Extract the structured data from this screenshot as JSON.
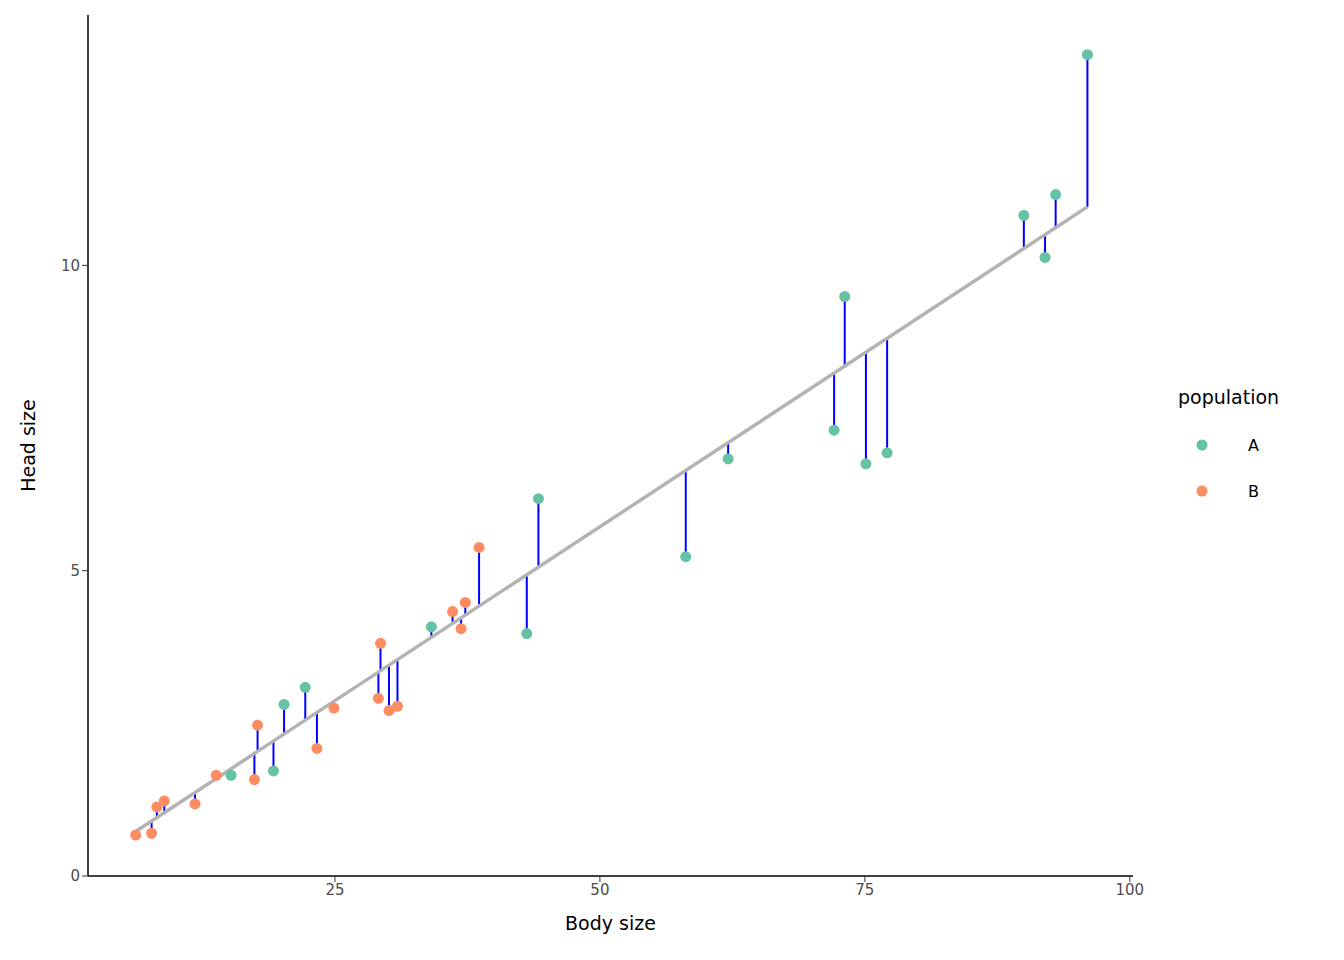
{
  "chart_data": {
    "type": "scatter",
    "x_label": "Body size",
    "y_label": "Head size",
    "xlim": [
      1.7,
      100.3
    ],
    "ylim": [
      0,
      14.1
    ],
    "xticks": [
      25,
      50,
      75,
      100
    ],
    "yticks": [
      0,
      5,
      10
    ],
    "grid": false,
    "legend": "right",
    "legend_title": "population",
    "series": [
      {
        "name": "A",
        "color": "#66c2a5",
        "marker": "circle",
        "x": [
          96.0,
          93.0,
          90.0,
          92.0,
          73.1,
          72.1,
          75.1,
          77.1,
          62.1,
          58.1,
          44.2,
          43.1,
          34.1,
          22.2,
          20.2,
          19.2,
          15.2
        ],
        "values": [
          13.45,
          11.16,
          10.82,
          10.13,
          9.49,
          7.3,
          6.75,
          6.93,
          6.83,
          5.23,
          6.18,
          3.97,
          4.08,
          3.09,
          2.81,
          1.72,
          1.65
        ]
      },
      {
        "name": "B",
        "color": "#fc8d62",
        "marker": "circle",
        "x": [
          6.2,
          7.7,
          8.2,
          8.9,
          11.8,
          13.8,
          17.4,
          17.7,
          23.3,
          24.9,
          29.1,
          29.3,
          30.1,
          30.9,
          36.1,
          36.9,
          37.3,
          38.6
        ],
        "values": [
          0.67,
          0.7,
          1.13,
          1.23,
          1.18,
          1.65,
          1.58,
          2.47,
          2.09,
          2.75,
          2.91,
          3.81,
          2.71,
          2.78,
          4.33,
          4.05,
          4.48,
          5.38
        ]
      }
    ],
    "fit": {
      "type": "line",
      "color": "#b3b3b3",
      "intercept": 0.024,
      "slope": 0.1139
    },
    "residuals": {
      "type": "segment",
      "color": "#0000ff"
    }
  }
}
